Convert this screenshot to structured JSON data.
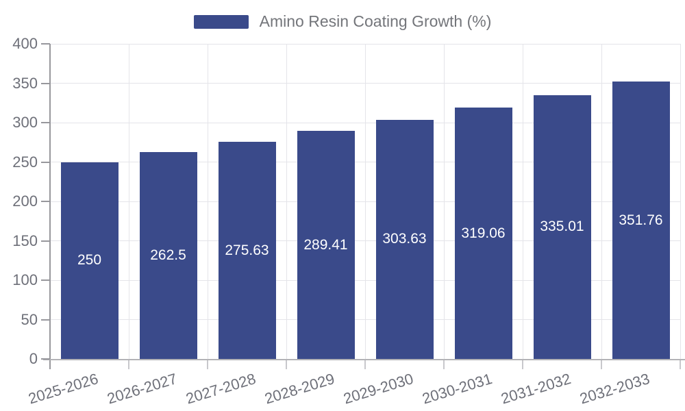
{
  "legend": {
    "label": "Amino Resin Coating Growth (%)"
  },
  "colors": {
    "bar": "#3a4a8a",
    "grid": "#e4e4e9",
    "y_axis_line": "#97979c",
    "x_axis_line": "#b3b3b6",
    "x_tick": "#c8c8cc",
    "tick_text": "#6e7079",
    "value_text": "#ffffff"
  },
  "chart_data": {
    "type": "bar",
    "title": "Amino Resin Coating Growth (%)",
    "legend_entries": [
      "Amino Resin Coating Growth (%)"
    ],
    "legend_position": "top-center",
    "categories": [
      "2025-2026",
      "2026-2027",
      "2027-2028",
      "2028-2029",
      "2029-2030",
      "2030-2031",
      "2031-2032",
      "2032-2033"
    ],
    "values": [
      250,
      262.5,
      275.63,
      289.41,
      303.63,
      319.06,
      335.01,
      351.76
    ],
    "value_labels": [
      "250",
      "262.5",
      "275.63",
      "289.41",
      "303.63",
      "319.06",
      "335.01",
      "351.76"
    ],
    "xlabel": "",
    "ylabel": "",
    "ylim": [
      0,
      400
    ],
    "ytick_step": 50,
    "ytick_labels": [
      "0",
      "50",
      "100",
      "150",
      "200",
      "250",
      "300",
      "350",
      "400"
    ],
    "grid": true
  }
}
